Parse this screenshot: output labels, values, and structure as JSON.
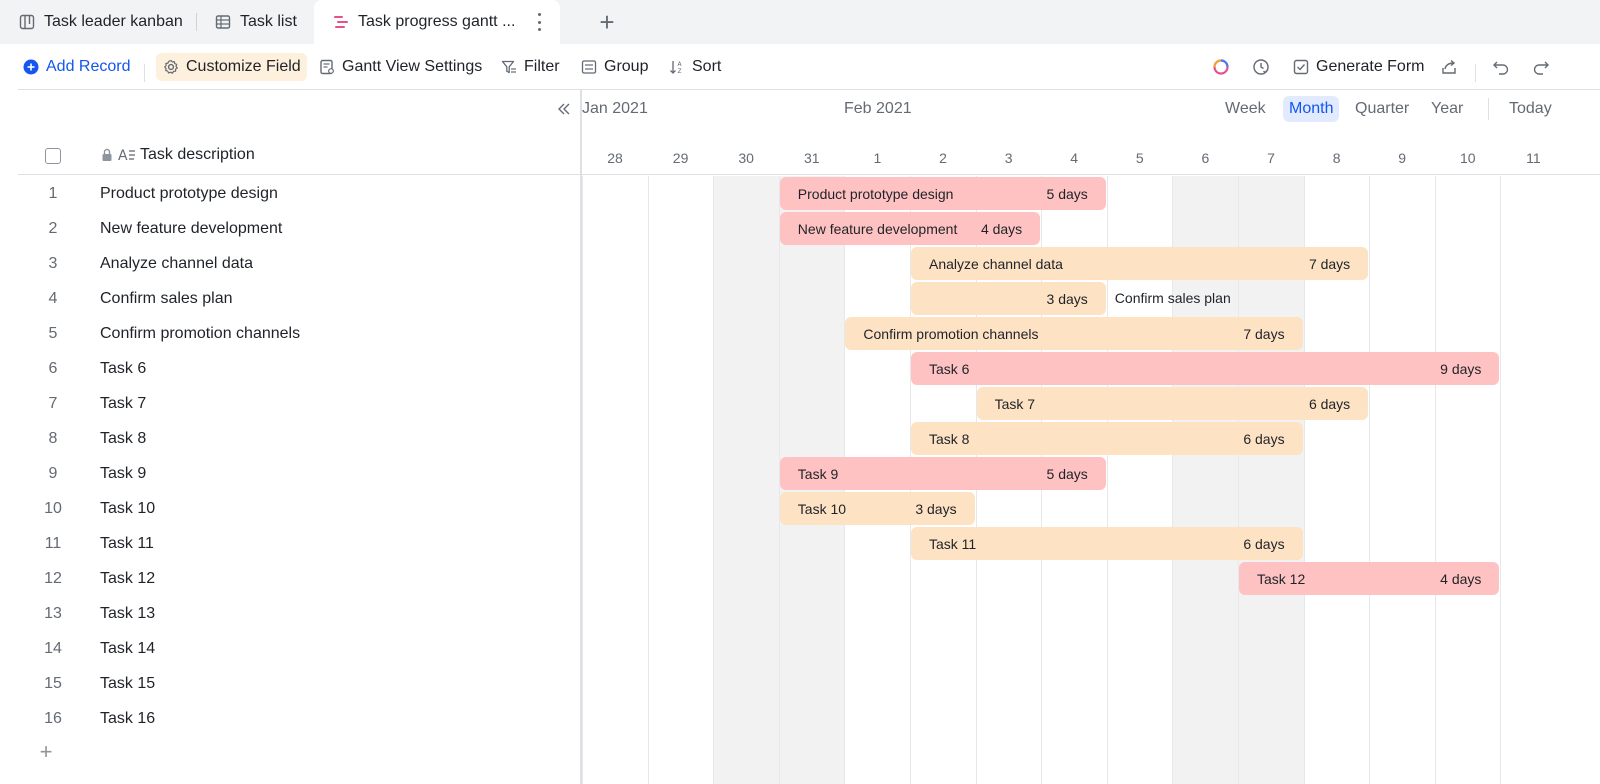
{
  "tabs": [
    {
      "label": "Task leader kanban",
      "icon": "kanban-icon"
    },
    {
      "label": "Task list",
      "icon": "table-icon"
    },
    {
      "label": "Task progress gantt ...",
      "icon": "gantt-icon"
    }
  ],
  "toolbar": {
    "add_record": "Add Record",
    "customize_field": "Customize Field",
    "gantt_settings": "Gantt View Settings",
    "filter": "Filter",
    "group": "Group",
    "sort": "Sort",
    "generate_form": "Generate Form"
  },
  "grid": {
    "field_header": "Task description",
    "rows": [
      {
        "num": "1",
        "desc": "Product prototype design"
      },
      {
        "num": "2",
        "desc": "New feature development"
      },
      {
        "num": "3",
        "desc": "Analyze channel data"
      },
      {
        "num": "4",
        "desc": "Confirm sales plan"
      },
      {
        "num": "5",
        "desc": "Confirm promotion channels"
      },
      {
        "num": "6",
        "desc": "Task 6"
      },
      {
        "num": "7",
        "desc": "Task 7"
      },
      {
        "num": "8",
        "desc": "Task 8"
      },
      {
        "num": "9",
        "desc": "Task 9"
      },
      {
        "num": "10",
        "desc": "Task 10"
      },
      {
        "num": "11",
        "desc": "Task 11"
      },
      {
        "num": "12",
        "desc": "Task 12"
      },
      {
        "num": "13",
        "desc": "Task 13"
      },
      {
        "num": "14",
        "desc": "Task 14"
      },
      {
        "num": "15",
        "desc": "Task 15"
      },
      {
        "num": "16",
        "desc": "Task 16"
      }
    ]
  },
  "timeline": {
    "months": [
      "Jan 2021",
      "Feb 2021"
    ],
    "scales": {
      "week": "Week",
      "month": "Month",
      "quarter": "Quarter",
      "year": "Year",
      "today": "Today"
    },
    "active_scale": "Month",
    "days": [
      "28",
      "29",
      "30",
      "31",
      "1",
      "2",
      "3",
      "4",
      "5",
      "6",
      "7",
      "8",
      "9",
      "10",
      "11"
    ],
    "weekend_days": [
      "30",
      "31",
      "6",
      "7"
    ],
    "tasks": [
      {
        "label": "Product prototype design",
        "start": "2021-01-31",
        "days": 5,
        "duration": "5 days",
        "color": "#ffc2c2"
      },
      {
        "label": "New feature development",
        "start": "2021-01-31",
        "days": 4,
        "duration": "4 days",
        "color": "#ffc2c2"
      },
      {
        "label": "Analyze channel data",
        "start": "2021-02-02",
        "days": 7,
        "duration": "7 days",
        "color": "#fde2c4"
      },
      {
        "label": "Confirm sales plan",
        "start": "2021-02-02",
        "days": 3,
        "duration": "3 days",
        "color": "#fde2c4",
        "label_outside": true
      },
      {
        "label": "Confirm promotion channels",
        "start": "2021-02-01",
        "days": 7,
        "duration": "7 days",
        "color": "#fde2c4"
      },
      {
        "label": "Task 6",
        "start": "2021-02-02",
        "days": 9,
        "duration": "9 days",
        "color": "#ffc2c2"
      },
      {
        "label": "Task 7",
        "start": "2021-02-03",
        "days": 6,
        "duration": "6 days",
        "color": "#fde2c4"
      },
      {
        "label": "Task 8",
        "start": "2021-02-02",
        "days": 6,
        "duration": "6 days",
        "color": "#fde2c4"
      },
      {
        "label": "Task 9",
        "start": "2021-01-31",
        "days": 5,
        "duration": "5 days",
        "color": "#ffc2c2"
      },
      {
        "label": "Task 10",
        "start": "2021-01-31",
        "days": 3,
        "duration": "3 days",
        "color": "#fde2c4"
      },
      {
        "label": "Task 11",
        "start": "2021-02-02",
        "days": 6,
        "duration": "6 days",
        "color": "#fde2c4"
      },
      {
        "label": "Task 12",
        "start": "2021-02-07",
        "days": 4,
        "duration": "4 days",
        "color": "#ffc2c2"
      }
    ]
  }
}
